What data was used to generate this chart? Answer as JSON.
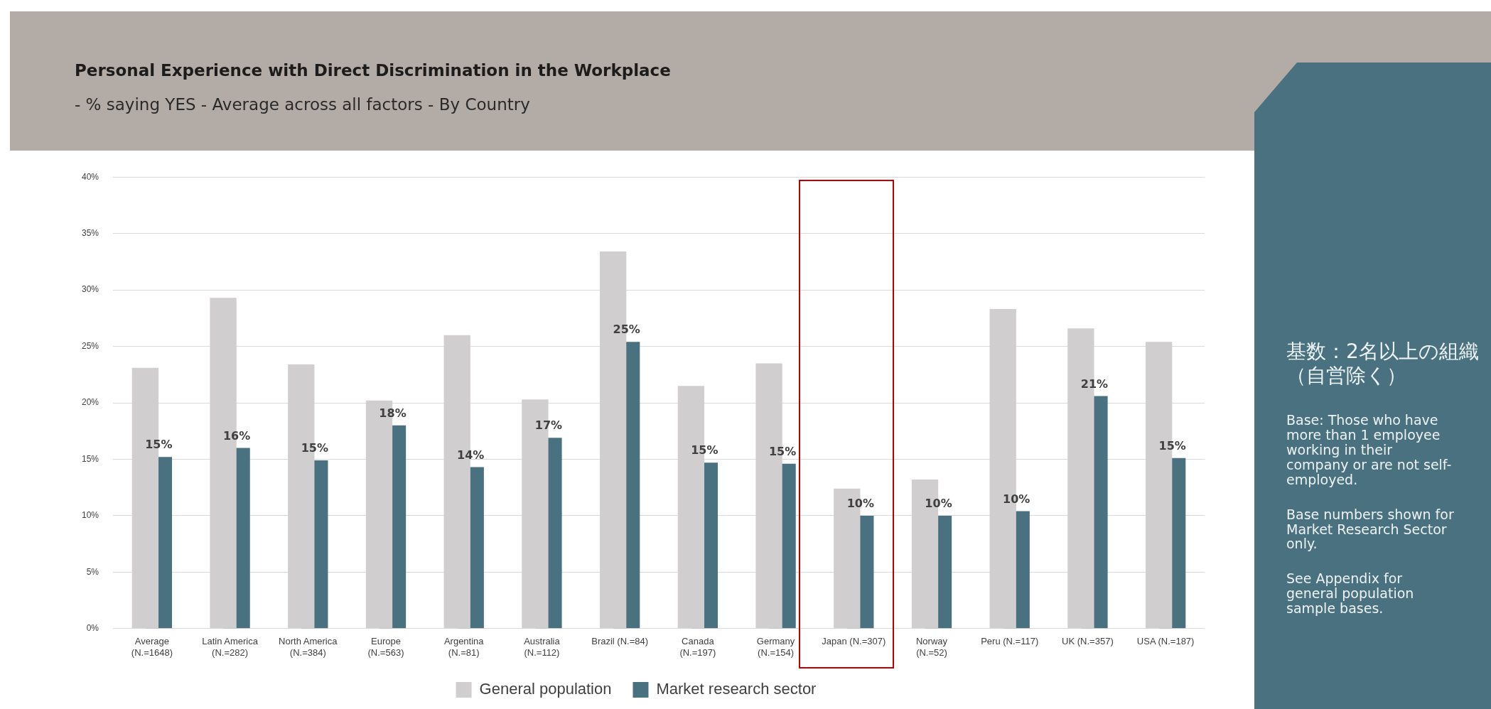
{
  "chart_data": {
    "type": "bar",
    "title": "Personal Experience with Direct Discrimination in the Workplace",
    "subtitle": "- % saying YES - Average across all factors - By Country",
    "categories": [
      "Average\n(N.=1648)",
      "Latin America\n(N.=282)",
      "North America\n(N.=384)",
      "Europe\n(N.=563)",
      "Argentina\n(N.=81)",
      "Australia\n(N.=112)",
      "Brazil (N.=84)",
      "Canada\n(N.=197)",
      "Germany\n(N.=154)",
      "Japan (N.=307)",
      "Norway\n(N.=52)",
      "Peru (N.=117)",
      "UK (N.=357)",
      "USA (N.=187)"
    ],
    "series": [
      {
        "name": "General population",
        "color": "#d0cecf",
        "values": [
          23.1,
          29.3,
          23.4,
          20.2,
          26.0,
          20.3,
          33.4,
          21.5,
          23.5,
          12.4,
          13.2,
          28.3,
          26.6,
          25.4
        ]
      },
      {
        "name": "Market research sector",
        "color": "#49717f",
        "values": [
          15.2,
          16.0,
          14.9,
          18.0,
          14.3,
          16.9,
          25.4,
          14.7,
          14.6,
          10.0,
          10.0,
          10.4,
          20.6,
          15.1
        ],
        "value_labels": [
          "15%",
          "16%",
          "15%",
          "18%",
          "14%",
          "17%",
          "25%",
          "15%",
          "15%",
          "10%",
          "10%",
          "10%",
          "21%",
          "15%"
        ]
      }
    ],
    "ylim": [
      0,
      40
    ],
    "yticks": [
      {
        "value": 0,
        "label": "0%"
      },
      {
        "value": 5,
        "label": "5%"
      },
      {
        "value": 10,
        "label": "10%"
      },
      {
        "value": 15,
        "label": "15%"
      },
      {
        "value": 20,
        "label": "20%"
      },
      {
        "value": 25,
        "label": "25%"
      },
      {
        "value": 30,
        "label": "30%"
      },
      {
        "value": 35,
        "label": "35%"
      },
      {
        "value": 40,
        "label": "40%"
      }
    ],
    "grid": "y",
    "legend": "bottom",
    "annotations": [
      "基数：2名以上の組織（自営除く）",
      "Base: Those who have more than 1 employee working in their company or are not self-employed.",
      "Base numbers shown for Market Research Sector only.",
      "See Appendix for general population sample bases."
    ]
  }
}
